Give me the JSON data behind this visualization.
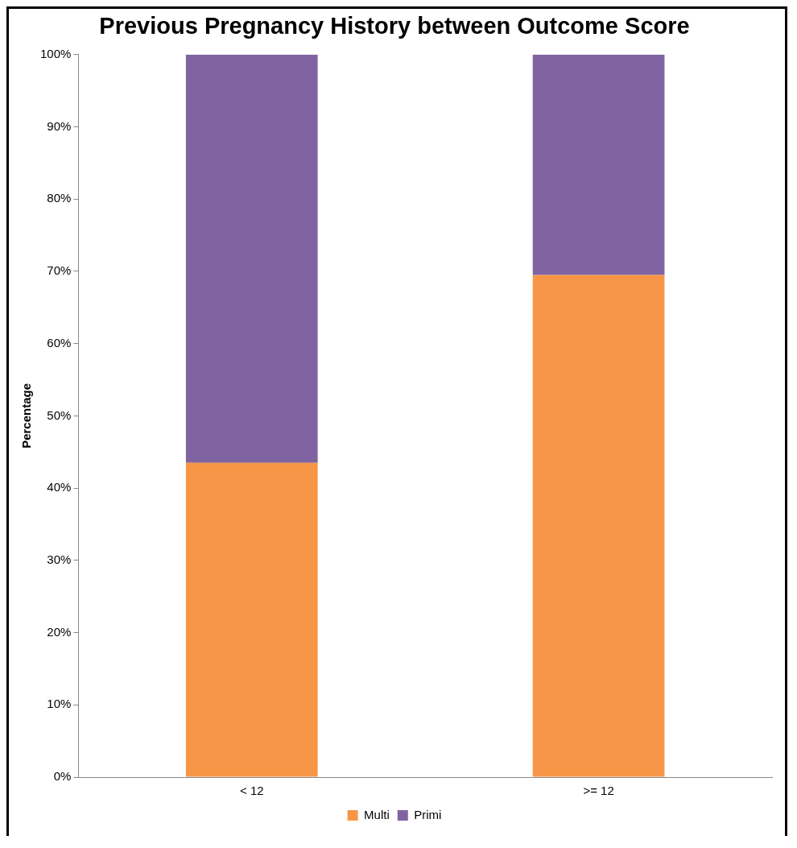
{
  "chart_data": {
    "type": "bar",
    "title": "Previous Pregnancy History between Outcome Score",
    "ylabel": "Percentage",
    "categories": [
      "< 12",
      ">= 12"
    ],
    "stacked": true,
    "series": [
      {
        "name": "Multi",
        "color": "#f79646",
        "values": [
          43.5,
          69.5
        ]
      },
      {
        "name": "Primi",
        "color": "#8064a2",
        "values": [
          56.5,
          30.5
        ]
      }
    ],
    "ylim": [
      0,
      100
    ],
    "yticks": [
      {
        "value": 0,
        "label": "0%"
      },
      {
        "value": 10,
        "label": "10%"
      },
      {
        "value": 20,
        "label": "20%"
      },
      {
        "value": 30,
        "label": "30%"
      },
      {
        "value": 40,
        "label": "40%"
      },
      {
        "value": 50,
        "label": "50%"
      },
      {
        "value": 60,
        "label": "60%"
      },
      {
        "value": 70,
        "label": "70%"
      },
      {
        "value": 80,
        "label": "80%"
      },
      {
        "value": 90,
        "label": "90%"
      },
      {
        "value": 100,
        "label": "100%"
      }
    ],
    "grid": false,
    "legend": "bottom"
  }
}
